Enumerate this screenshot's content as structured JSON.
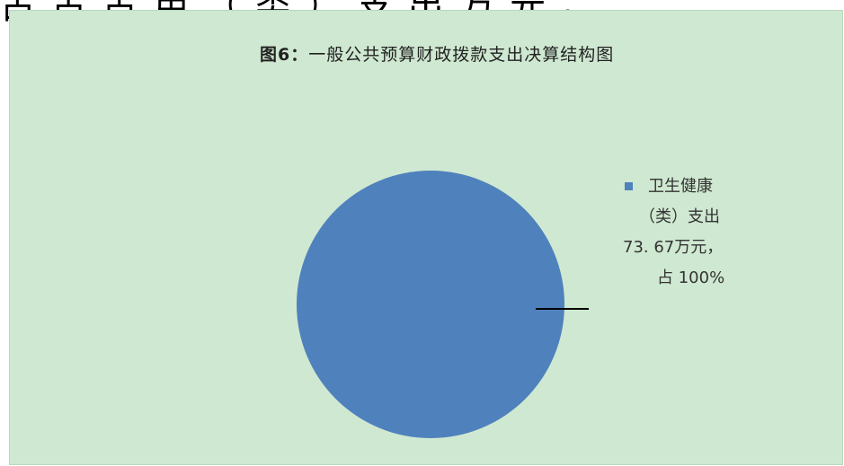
{
  "top_text": "占 占 占 用 （ 类 ） 支 出 万 元 。",
  "chart_data": {
    "type": "pie",
    "title": "图6：一般公共预算财政拨款支出决算结构图",
    "title_prefix": "图6：",
    "title_rest": "一般公共预算财政拨款支出决算结构图",
    "slices": [
      {
        "name": "卫生健康（类）支出",
        "value": 73.67,
        "unit": "万元",
        "percent": 100,
        "color": "#4f81bd"
      }
    ],
    "label_lines": [
      "卫生健康",
      "（类）支出",
      "73. 67万元，",
      "占 100%"
    ]
  },
  "colors": {
    "chart_background": "#cfe8d1",
    "slice": "#4f81bd",
    "leader_line": "#000000"
  }
}
